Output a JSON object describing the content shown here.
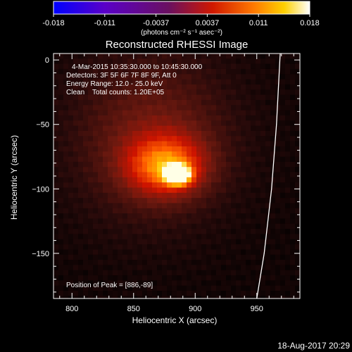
{
  "chart_data": {
    "type": "heatmap",
    "title": "Reconstructed RHESSI Image",
    "xlabel": "Heliocentric X (arcsec)",
    "ylabel": "Heliocentric Y (arcsec)",
    "xlim": [
      785,
      985
    ],
    "ylim": [
      -185,
      5
    ],
    "x_ticks": [
      800,
      850,
      900,
      950
    ],
    "y_ticks": [
      0,
      -50,
      -100,
      -150
    ],
    "colorbar": {
      "ticks": [
        "-0.018",
        "-0.011",
        "-0.0037",
        "0.0037",
        "0.011",
        "0.018"
      ],
      "min": -0.018,
      "max": 0.018,
      "unit_label": "(photons cm⁻² s⁻¹ asec⁻²)"
    },
    "annotations": [
      "4-Mar-2015 10:35:30.000 to 10:45:30.000",
      "Detectors: 3F 5F 6F 7F 8F 9F, Att 0",
      "Energy Range: 12.0 - 25.0 keV",
      "Clean    Total counts: 1.20E+05"
    ],
    "peak_label": "Position of Peak = [886,-89]",
    "peak": {
      "x": 886,
      "y": -89,
      "value": 0.018
    },
    "sources": [
      {
        "x": 886,
        "y": -89,
        "sigma_x": 7,
        "sigma_y": 5,
        "amp": 1.0
      },
      {
        "x": 876,
        "y": -82,
        "sigma_x": 22,
        "sigma_y": 16,
        "amp": 0.55
      },
      {
        "x": 865,
        "y": -60,
        "sigma_x": 45,
        "sigma_y": 45,
        "amp": 0.25
      }
    ],
    "limb_points": [
      [
        969,
        5
      ],
      [
        966,
        -50
      ],
      [
        962,
        -100
      ],
      [
        956,
        -150
      ],
      [
        950,
        -185
      ]
    ]
  },
  "footer": {
    "date": "18-Aug-2017 20:29"
  },
  "colors": {
    "limb": "#ffffff",
    "background": "#000000"
  }
}
